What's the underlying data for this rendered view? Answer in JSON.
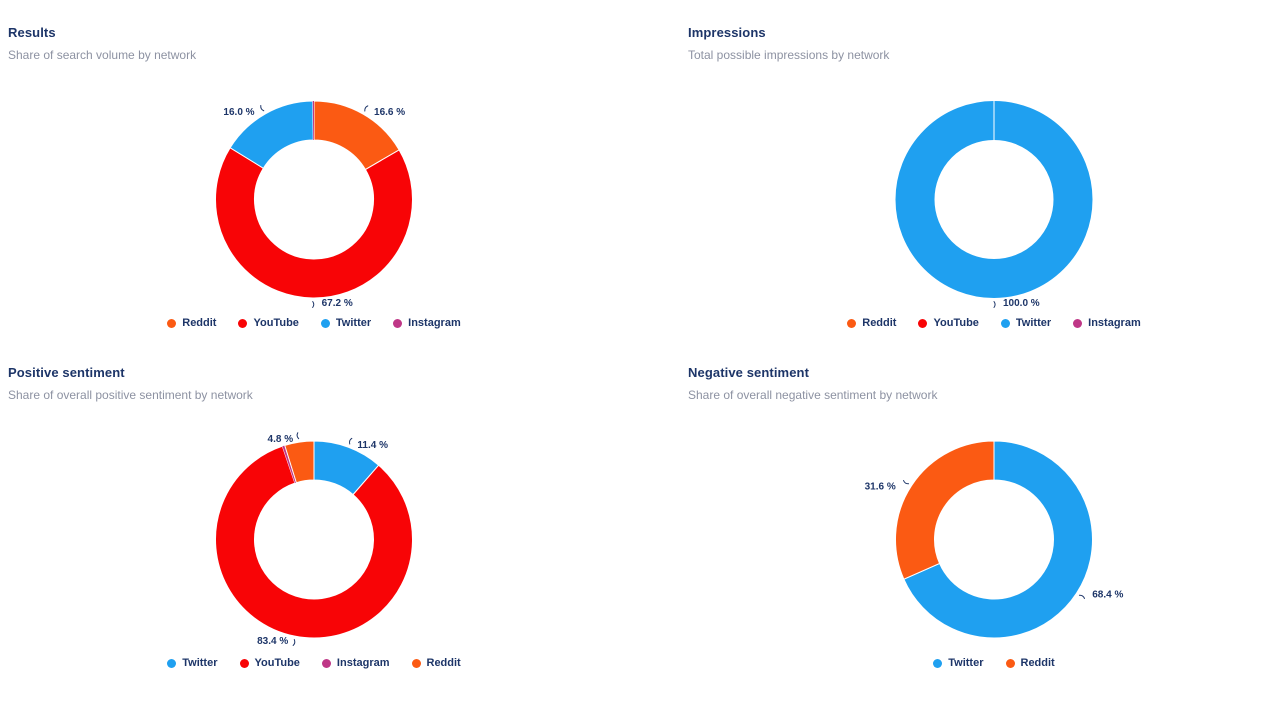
{
  "colors": {
    "Reddit": "#fb5a13",
    "YouTube": "#f80406",
    "Twitter": "#1fa0f0",
    "Instagram": "#bf3787",
    "label_text": "#1d3568",
    "title_text": "#1d3568",
    "subtitle_text": "#8d92a2"
  },
  "panels": [
    {
      "title": "Results",
      "subtitle": "Share of search volume by network",
      "chart_data": {
        "type": "pie",
        "style": "donut",
        "unit": "%",
        "label_format": "{value} %",
        "slices": [
          {
            "label": "Reddit",
            "pct": 16.6
          },
          {
            "label": "YouTube",
            "pct": 67.2
          },
          {
            "label": "Twitter",
            "pct": 16.0
          },
          {
            "label": "Instagram",
            "pct": 0.2
          }
        ],
        "shown_labels": [
          "16.6 %",
          "67.2 %",
          "16.0 %"
        ],
        "legend": [
          "Reddit",
          "YouTube",
          "Twitter",
          "Instagram"
        ],
        "legend_position": "bottom"
      }
    },
    {
      "title": "Impressions",
      "subtitle": "Total possible impressions by network",
      "chart_data": {
        "type": "pie",
        "style": "donut",
        "unit": "%",
        "label_format": "{value} %",
        "slices": [
          {
            "label": "Twitter",
            "pct": 100.0
          }
        ],
        "shown_labels": [
          "100.0 %"
        ],
        "legend": [
          "Reddit",
          "YouTube",
          "Twitter",
          "Instagram"
        ],
        "legend_position": "bottom"
      }
    },
    {
      "title": "Positive sentiment",
      "subtitle": "Share of overall positive sentiment by network",
      "chart_data": {
        "type": "pie",
        "style": "donut",
        "unit": "%",
        "label_format": "{value} %",
        "slices": [
          {
            "label": "Twitter",
            "pct": 11.4
          },
          {
            "label": "YouTube",
            "pct": 83.4
          },
          {
            "label": "Instagram",
            "pct": 0.4
          },
          {
            "label": "Reddit",
            "pct": 4.8
          }
        ],
        "shown_labels": [
          "11.4 %",
          "83.4 %",
          "4.8 %"
        ],
        "legend": [
          "Twitter",
          "YouTube",
          "Instagram",
          "Reddit"
        ],
        "legend_position": "bottom"
      }
    },
    {
      "title": "Negative sentiment",
      "subtitle": "Share of overall negative sentiment by network",
      "chart_data": {
        "type": "pie",
        "style": "donut",
        "unit": "%",
        "label_format": "{value} %",
        "slices": [
          {
            "label": "Twitter",
            "pct": 68.4
          },
          {
            "label": "Reddit",
            "pct": 31.6
          }
        ],
        "shown_labels": [
          "68.4 %",
          "31.6 %"
        ],
        "legend": [
          "Twitter",
          "Reddit"
        ],
        "legend_position": "bottom"
      }
    }
  ]
}
